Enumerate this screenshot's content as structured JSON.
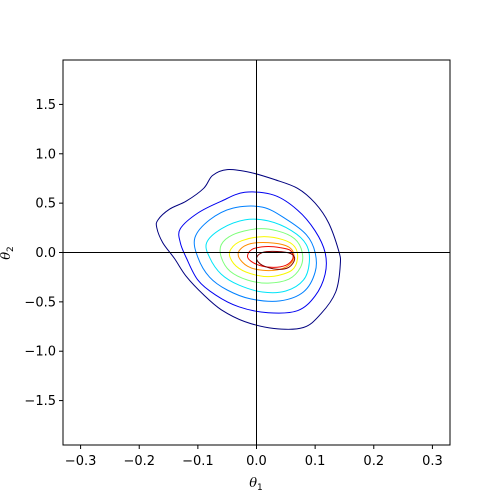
{
  "chart_data": {
    "type": "contour",
    "title": "",
    "xlabel": "θ",
    "xlabel_sub": "1",
    "ylabel": "θ",
    "ylabel_sub": "2",
    "xlim": [
      -0.33,
      0.33
    ],
    "ylim": [
      -1.95,
      1.95
    ],
    "xticks": [
      -0.3,
      -0.2,
      -0.1,
      0.0,
      0.1,
      0.2,
      0.3
    ],
    "xtick_labels": [
      "−0.3",
      "−0.2",
      "−0.1",
      "0.0",
      "0.1",
      "0.2",
      "0.3"
    ],
    "yticks": [
      -1.5,
      -1.0,
      -0.5,
      0.0,
      0.5,
      1.0,
      1.5
    ],
    "ytick_labels": [
      "−1.5",
      "−1.0",
      "−0.5",
      "0.0",
      "0.5",
      "1.0",
      "1.5"
    ],
    "reference_lines": {
      "x": 0.0,
      "y": 0.0
    },
    "grid": false,
    "colormap": "jet",
    "levels": [
      {
        "color": "#00007f",
        "points": [
          [
            -0.14,
            -0.06
          ],
          [
            -0.12,
            -0.24
          ],
          [
            -0.09,
            -0.43
          ],
          [
            -0.06,
            -0.58
          ],
          [
            -0.02,
            -0.7
          ],
          [
            0.03,
            -0.77
          ],
          [
            0.08,
            -0.76
          ],
          [
            0.11,
            -0.62
          ],
          [
            0.135,
            -0.4
          ],
          [
            0.143,
            -0.12
          ],
          [
            0.14,
            0.02
          ],
          [
            0.123,
            0.3
          ],
          [
            0.1,
            0.5
          ],
          [
            0.07,
            0.65
          ],
          [
            0.03,
            0.74
          ],
          [
            -0.01,
            0.81
          ],
          [
            -0.05,
            0.84
          ],
          [
            -0.075,
            0.78
          ],
          [
            -0.09,
            0.65
          ],
          [
            -0.12,
            0.52
          ],
          [
            -0.148,
            0.44
          ],
          [
            -0.168,
            0.33
          ],
          [
            -0.17,
            0.25
          ],
          [
            -0.16,
            0.1
          ]
        ]
      },
      {
        "color": "#0000f0",
        "points": [
          [
            -0.12,
            -0.05
          ],
          [
            -0.1,
            -0.28
          ],
          [
            -0.07,
            -0.43
          ],
          [
            -0.03,
            -0.55
          ],
          [
            0.02,
            -0.61
          ],
          [
            0.07,
            -0.59
          ],
          [
            0.1,
            -0.44
          ],
          [
            0.117,
            -0.22
          ],
          [
            0.117,
            0.0
          ],
          [
            0.1,
            0.22
          ],
          [
            0.07,
            0.43
          ],
          [
            0.03,
            0.58
          ],
          [
            -0.02,
            0.61
          ],
          [
            -0.06,
            0.52
          ],
          [
            -0.1,
            0.4
          ],
          [
            -0.13,
            0.24
          ],
          [
            -0.13,
            0.1
          ]
        ]
      },
      {
        "color": "#0080ff",
        "points": [
          [
            -0.1,
            -0.05
          ],
          [
            -0.08,
            -0.25
          ],
          [
            -0.05,
            -0.38
          ],
          [
            -0.01,
            -0.47
          ],
          [
            0.04,
            -0.49
          ],
          [
            0.08,
            -0.4
          ],
          [
            0.1,
            -0.2
          ],
          [
            0.1,
            0.0
          ],
          [
            0.085,
            0.18
          ],
          [
            0.05,
            0.34
          ],
          [
            0.01,
            0.46
          ],
          [
            -0.04,
            0.45
          ],
          [
            -0.08,
            0.33
          ],
          [
            -0.105,
            0.15
          ]
        ]
      },
      {
        "color": "#00e4f8",
        "points": [
          [
            -0.08,
            -0.05
          ],
          [
            -0.06,
            -0.22
          ],
          [
            -0.03,
            -0.33
          ],
          [
            0.01,
            -0.4
          ],
          [
            0.05,
            -0.39
          ],
          [
            0.08,
            -0.28
          ],
          [
            0.09,
            -0.1
          ],
          [
            0.085,
            0.08
          ],
          [
            0.06,
            0.22
          ],
          [
            0.02,
            0.32
          ],
          [
            -0.02,
            0.33
          ],
          [
            -0.06,
            0.24
          ],
          [
            -0.085,
            0.1
          ]
        ]
      },
      {
        "color": "#7cff79",
        "points": [
          [
            -0.06,
            -0.05
          ],
          [
            -0.045,
            -0.19
          ],
          [
            -0.015,
            -0.28
          ],
          [
            0.02,
            -0.31
          ],
          [
            0.055,
            -0.27
          ],
          [
            0.075,
            -0.15
          ],
          [
            0.078,
            0.0
          ],
          [
            0.065,
            0.14
          ],
          [
            0.035,
            0.22
          ],
          [
            0.0,
            0.24
          ],
          [
            -0.04,
            0.18
          ],
          [
            -0.06,
            0.08
          ]
        ]
      },
      {
        "color": "#f8f800",
        "points": [
          [
            -0.045,
            -0.05
          ],
          [
            -0.03,
            -0.16
          ],
          [
            0.0,
            -0.23
          ],
          [
            0.03,
            -0.24
          ],
          [
            0.06,
            -0.18
          ],
          [
            0.07,
            -0.06
          ],
          [
            0.065,
            0.06
          ],
          [
            0.045,
            0.13
          ],
          [
            0.01,
            0.16
          ],
          [
            -0.025,
            0.12
          ],
          [
            -0.043,
            0.04
          ]
        ]
      },
      {
        "color": "#ff8c00",
        "points": [
          [
            -0.03,
            -0.05
          ],
          [
            -0.015,
            -0.14
          ],
          [
            0.01,
            -0.18
          ],
          [
            0.04,
            -0.17
          ],
          [
            0.06,
            -0.1
          ],
          [
            0.063,
            0.0
          ],
          [
            0.05,
            0.07
          ],
          [
            0.02,
            0.1
          ],
          [
            -0.01,
            0.09
          ],
          [
            -0.028,
            0.03
          ]
        ]
      },
      {
        "color": "#f00a00",
        "points": [
          [
            -0.015,
            -0.05
          ],
          [
            0.0,
            -0.12
          ],
          [
            0.025,
            -0.15
          ],
          [
            0.05,
            -0.13
          ],
          [
            0.062,
            -0.06
          ],
          [
            0.058,
            0.02
          ],
          [
            0.04,
            0.05
          ],
          [
            0.015,
            0.06
          ],
          [
            -0.008,
            0.03
          ]
        ]
      },
      {
        "color": "#7f0000",
        "points": [
          [
            0.0,
            -0.06
          ],
          [
            0.01,
            -0.13
          ],
          [
            0.035,
            -0.17
          ],
          [
            0.055,
            -0.15
          ],
          [
            0.065,
            -0.07
          ],
          [
            0.058,
            -0.01
          ],
          [
            0.035,
            0.01
          ],
          [
            0.01,
            0.0
          ]
        ]
      }
    ]
  }
}
